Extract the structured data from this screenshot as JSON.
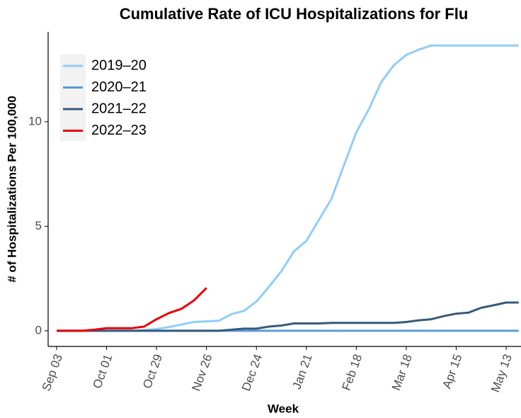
{
  "chart_data": {
    "type": "line",
    "title": "Cumulative Rate of ICU Hospitalizations for Flu",
    "x_label": "Week",
    "y_label": "# of Hospitalizations Per 100,000",
    "categories": [
      "Sep 03",
      null,
      null,
      null,
      "Oct 01",
      null,
      null,
      null,
      "Oct 29",
      null,
      null,
      null,
      "Nov 26",
      null,
      null,
      null,
      "Dec 24",
      null,
      null,
      null,
      "Jan 21",
      null,
      null,
      null,
      "Feb 18",
      null,
      null,
      null,
      "Mar 18",
      null,
      null,
      null,
      "Apr 15",
      null,
      null,
      null,
      "May 13",
      null
    ],
    "series": [
      {
        "name": "2019–20",
        "color": "#90cdf9",
        "values": [
          0,
          0,
          0,
          0,
          0,
          0,
          0,
          0.03,
          0.08,
          0.18,
          0.3,
          0.42,
          0.45,
          0.48,
          0.8,
          0.95,
          1.4,
          2.1,
          2.85,
          3.8,
          4.3,
          5.3,
          6.3,
          7.9,
          9.5,
          10.6,
          11.9,
          12.7,
          13.2,
          13.45,
          13.65,
          13.65,
          13.65,
          13.65,
          13.65,
          13.65,
          13.65,
          13.65
        ]
      },
      {
        "name": "2020–21",
        "color": "#5b9bd5",
        "values": [
          0,
          0,
          0,
          0,
          0,
          0,
          0,
          0,
          0,
          0,
          0,
          0,
          0,
          0,
          0,
          0,
          0,
          0,
          0,
          0,
          0,
          0,
          0,
          0,
          0,
          0,
          0,
          0,
          0,
          0,
          0,
          0,
          0,
          0,
          0,
          0,
          0,
          0
        ]
      },
      {
        "name": "2021–22",
        "color": "#365b7a",
        "values": [
          0,
          0,
          0,
          0,
          0,
          0,
          0,
          0,
          0,
          0,
          0,
          0,
          0,
          0,
          0.05,
          0.1,
          0.1,
          0.2,
          0.25,
          0.35,
          0.35,
          0.35,
          0.38,
          0.38,
          0.38,
          0.38,
          0.38,
          0.38,
          0.42,
          0.5,
          0.55,
          0.7,
          0.82,
          0.87,
          1.1,
          1.22,
          1.35,
          1.35
        ]
      },
      {
        "name": "2022–23",
        "color": "#e8000b",
        "values": [
          0,
          0,
          0,
          0.05,
          0.12,
          0.12,
          0.12,
          0.2,
          0.55,
          0.85,
          1.05,
          1.45,
          2.05,
          null,
          null,
          null,
          null,
          null,
          null,
          null,
          null,
          null,
          null,
          null,
          null,
          null,
          null,
          null,
          null,
          null,
          null,
          null,
          null,
          null,
          null,
          null,
          null,
          null
        ]
      }
    ],
    "ylim": [
      -0.75,
      14.3
    ],
    "yticks": [
      0,
      5,
      10
    ],
    "legend": "top-left",
    "grid": false
  }
}
